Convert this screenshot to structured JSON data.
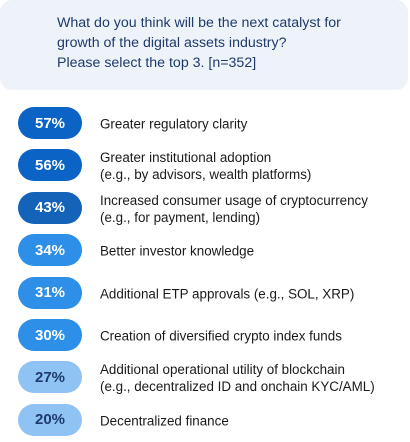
{
  "question": {
    "line1": "What do you think will be the next catalyst for",
    "line2": "growth of the digital assets industry?",
    "line3": "Please select the top 3. [n=352]"
  },
  "chart_data": {
    "type": "table",
    "title": "What do you think will be the next catalyst for growth of the digital assets industry? Please select the top 3. [n=352]",
    "unit": "%",
    "rows": [
      {
        "label": "Greater regulatory clarity",
        "sub": "",
        "value": 57,
        "display": "57%",
        "color": "#0b63c5",
        "light": false
      },
      {
        "label": "Greater institutional adoption",
        "sub": "(e.g., by advisors, wealth platforms)",
        "value": 56,
        "display": "56%",
        "color": "#0b63c5",
        "light": false
      },
      {
        "label": "Increased consumer usage of cryptocurrency",
        "sub": "(e.g., for payment, lending)",
        "value": 43,
        "display": "43%",
        "color": "#1463b8",
        "light": false
      },
      {
        "label": "Better investor knowledge",
        "sub": "",
        "value": 34,
        "display": "34%",
        "color": "#2e8fe8",
        "light": false
      },
      {
        "label": "Additional ETP approvals (e.g., SOL, XRP)",
        "sub": "",
        "value": 31,
        "display": "31%",
        "color": "#2e8fe8",
        "light": false
      },
      {
        "label": "Creation of diversified crypto index funds",
        "sub": "",
        "value": 30,
        "display": "30%",
        "color": "#2e8fe8",
        "light": false
      },
      {
        "label": "Additional operational utility of blockchain",
        "sub": "(e.g., decentralized ID and onchain KYC/AML)",
        "value": 27,
        "display": "27%",
        "color": "#8ec3f3",
        "light": true
      },
      {
        "label": "Decentralized finance",
        "sub": "",
        "value": 20,
        "display": "20%",
        "color": "#8ec3f3",
        "light": true
      }
    ]
  }
}
